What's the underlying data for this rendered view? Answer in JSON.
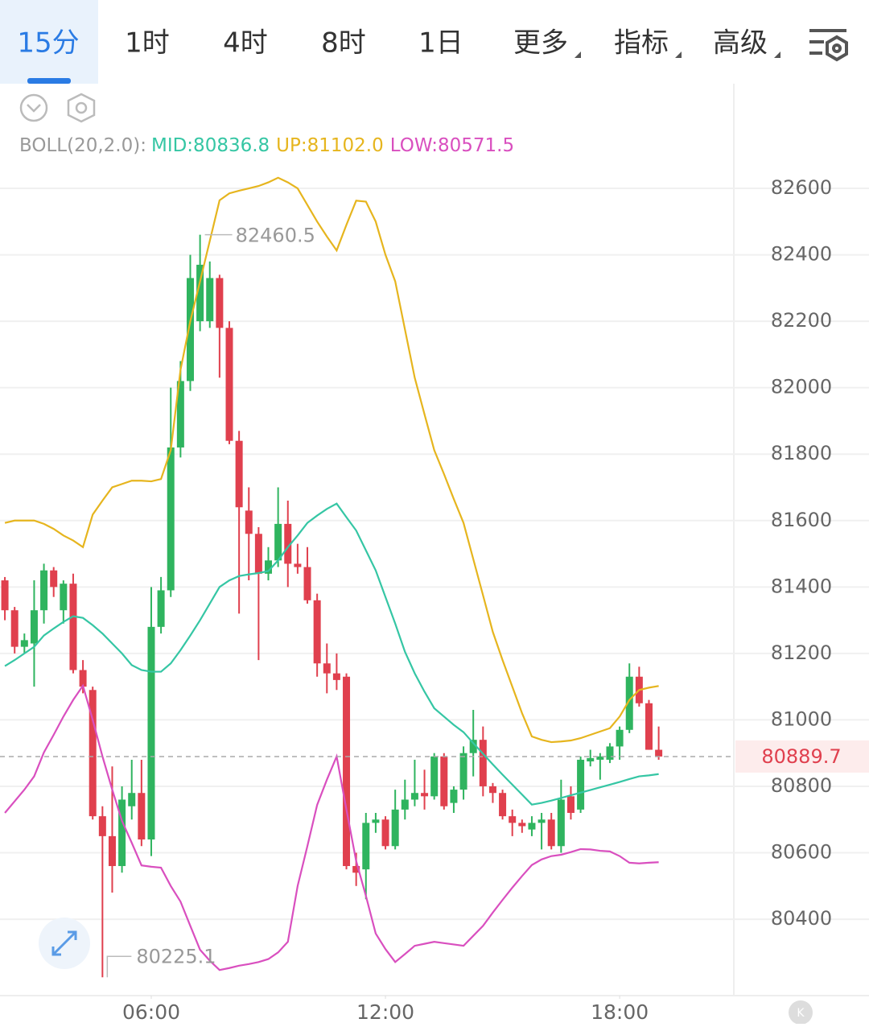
{
  "tabs": [
    "15分",
    "1时",
    "4时",
    "8时",
    "1日",
    "更多",
    "指标",
    "高级"
  ],
  "chart_data": {
    "type": "candlestick",
    "indicator": "BOLL(20,2.0):",
    "xlim": [
      -0.5,
      74.7
    ],
    "ylim": [
      80170,
      82915
    ],
    "yticks": [
      80400,
      80600,
      80800,
      81000,
      81200,
      81400,
      81600,
      81800,
      82000,
      82200,
      82400,
      82600
    ],
    "xticks": [
      {
        "value": 15,
        "label": "06:00"
      },
      {
        "value": 39,
        "label": "12:00"
      },
      {
        "value": 63,
        "label": "18:00"
      }
    ],
    "grid": true,
    "up_color": "#2fb45f",
    "down_color": "#e0404e",
    "high_annotation": 82460.5,
    "low_annotation": 80225.1,
    "last_price": 80889.7,
    "open": [
      81420,
      81330,
      81220,
      81230,
      81330,
      81450,
      81330,
      81410,
      81150,
      81090,
      80710,
      80650,
      80560,
      80740,
      80780,
      80640,
      81280,
      81390,
      81820,
      82020,
      82200,
      82200,
      82330,
      82180,
      81840,
      81630,
      81560,
      81440,
      81480,
      81590,
      81470,
      81460,
      81360,
      81170,
      81140,
      81130,
      80560,
      80550,
      80690,
      80700,
      80620,
      80730,
      80760,
      80780,
      80770,
      80890,
      80750,
      80790,
      80900,
      80940,
      80800,
      80780,
      80710,
      80690,
      80670,
      80690,
      80700,
      80620,
      80770,
      80730,
      80875,
      80880,
      80880,
      80920,
      80970,
      81130,
      81050,
      80910
    ],
    "high": [
      81430,
      81340,
      81260,
      81420,
      81470,
      81460,
      81420,
      81440,
      81180,
      81100,
      80740,
      80860,
      80800,
      80880,
      80880,
      81400,
      81430,
      82000,
      82080,
      82400,
      82460.5,
      82380,
      82340,
      82200,
      81870,
      81700,
      81580,
      81520,
      81700,
      81660,
      81530,
      81520,
      81380,
      81230,
      81200,
      81140,
      80600,
      80720,
      80720,
      80710,
      80790,
      80820,
      80880,
      80850,
      80900,
      80900,
      80800,
      80920,
      81030,
      80980,
      80810,
      80790,
      80730,
      80700,
      80710,
      80720,
      80720,
      80820,
      80800,
      80890,
      80910,
      80900,
      80930,
      80980,
      81170,
      81160,
      81060,
      80980
    ],
    "low": [
      81300,
      81200,
      81200,
      81100,
      81290,
      81370,
      81290,
      81140,
      81080,
      80700,
      80225.1,
      80480,
      80540,
      80700,
      80620,
      80590,
      81260,
      81370,
      81790,
      81990,
      82170,
      82180,
      82030,
      81830,
      81320,
      81420,
      81180,
      81420,
      81460,
      81400,
      81440,
      81350,
      81130,
      81080,
      81090,
      80550,
      80500,
      80460,
      80660,
      80610,
      80610,
      80700,
      80740,
      80730,
      80760,
      80730,
      80720,
      80760,
      80830,
      80770,
      80750,
      80700,
      80650,
      80660,
      80650,
      80610,
      80610,
      80600,
      80700,
      80720,
      80860,
      80820,
      80870,
      80880,
      80960,
      81040,
      80910,
      80880
    ],
    "close": [
      81330,
      81220,
      81240,
      81330,
      81450,
      81400,
      81410,
      81150,
      81100,
      80710,
      80650,
      80560,
      80760,
      80780,
      80640,
      81280,
      81390,
      81820,
      82020,
      82330,
      82370,
      82330,
      82180,
      81840,
      81640,
      81560,
      81440,
      81480,
      81590,
      81470,
      81460,
      81360,
      81170,
      81140,
      81120,
      80560,
      80540,
      80690,
      80700,
      80620,
      80730,
      80760,
      80780,
      80770,
      80890,
      80740,
      80790,
      80900,
      80940,
      80800,
      80780,
      80710,
      80690,
      80680,
      80690,
      80700,
      80620,
      80760,
      80720,
      80880,
      80885,
      80890,
      80920,
      80970,
      81130,
      81050,
      80910,
      80889.7
    ],
    "series": [
      {
        "name": "MID:80836.8",
        "color": "#35c6a4",
        "values": [
          81162,
          81180,
          81200,
          81220,
          81254,
          81275,
          81295,
          81312,
          81307,
          81285,
          81260,
          81230,
          81200,
          81165,
          81150,
          81145,
          81145,
          81170,
          81210,
          81254,
          81300,
          81350,
          81400,
          81420,
          81433,
          81438,
          81442,
          81448,
          81480,
          81520,
          81555,
          81593,
          81615,
          81635,
          81651,
          81610,
          81570,
          81510,
          81450,
          81370,
          81290,
          81205,
          81140,
          81085,
          81035,
          81010,
          80985,
          80963,
          80930,
          80898,
          80866,
          80835,
          80805,
          80775,
          80745,
          80750,
          80757,
          80765,
          80773,
          80781,
          80789,
          80797,
          80805,
          80813,
          80822,
          80830,
          80833,
          80836.8
        ]
      },
      {
        "name": "UP:81102.0",
        "color": "#e6b51e",
        "values": [
          81593,
          81600,
          81600,
          81600,
          81590,
          81575,
          81555,
          81540,
          81520,
          81618,
          81660,
          81700,
          81710,
          81720,
          81720,
          81718,
          81725,
          81812,
          82054,
          82200,
          82320,
          82442,
          82564,
          82585,
          82593,
          82600,
          82607,
          82618,
          82632,
          82618,
          82600,
          82550,
          82500,
          82455,
          82413,
          82490,
          82563,
          82560,
          82500,
          82400,
          82320,
          82175,
          82030,
          81920,
          81812,
          81740,
          81665,
          81593,
          81484,
          81375,
          81265,
          81180,
          81100,
          81020,
          80950,
          80940,
          80933,
          80935,
          80938,
          80945,
          80955,
          80965,
          80975,
          81010,
          81060,
          81090,
          81097,
          81102.0
        ]
      },
      {
        "name": "LOW:80571.5",
        "color": "#d94fbf",
        "values": [
          80720,
          80755,
          80790,
          80830,
          80902,
          80955,
          81010,
          81060,
          81103,
          81000,
          80890,
          80790,
          80696,
          80630,
          80562,
          80558,
          80555,
          80500,
          80453,
          80380,
          80308,
          80275,
          80247,
          80253,
          80260,
          80265,
          80271,
          80280,
          80300,
          80332,
          80500,
          80620,
          80744,
          80820,
          80890,
          80730,
          80575,
          80470,
          80357,
          80310,
          80271,
          80295,
          80320,
          80326,
          80332,
          80328,
          80324,
          80320,
          80350,
          80380,
          80420,
          80458,
          80495,
          80530,
          80563,
          80580,
          80590,
          80594,
          80602,
          80611,
          80610,
          80606,
          80604,
          80590,
          80570,
          80568,
          80570,
          80571.5
        ]
      }
    ]
  }
}
